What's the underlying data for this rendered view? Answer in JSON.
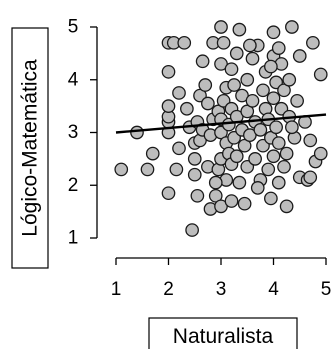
{
  "chart_data": {
    "type": "scatter",
    "xlabel": "Naturalista",
    "ylabel": "Lógico-Matemática",
    "xlim": [
      1,
      5
    ],
    "ylim": [
      1,
      5
    ],
    "x_ticks": [
      1,
      2,
      3,
      4,
      5
    ],
    "y_ticks": [
      1,
      2,
      3,
      4,
      5
    ],
    "grid": false,
    "point_fill": "#bdbdbd",
    "point_stroke": "#1a1a1a",
    "regression_line": {
      "x": [
        1,
        5
      ],
      "y": [
        3.0,
        3.34
      ],
      "color": "#000000"
    },
    "points": [
      {
        "x": 1.1,
        "y": 2.3
      },
      {
        "x": 1.4,
        "y": 3.0
      },
      {
        "x": 1.6,
        "y": 2.3
      },
      {
        "x": 1.7,
        "y": 2.6
      },
      {
        "x": 2.0,
        "y": 1.85
      },
      {
        "x": 2.0,
        "y": 3.0
      },
      {
        "x": 2.0,
        "y": 3.2
      },
      {
        "x": 2.0,
        "y": 3.3
      },
      {
        "x": 2.0,
        "y": 3.5
      },
      {
        "x": 2.0,
        "y": 4.15
      },
      {
        "x": 2.0,
        "y": 4.7
      },
      {
        "x": 2.1,
        "y": 4.7
      },
      {
        "x": 2.15,
        "y": 2.3
      },
      {
        "x": 2.2,
        "y": 2.7
      },
      {
        "x": 2.3,
        "y": 4.7
      },
      {
        "x": 2.4,
        "y": 3.1
      },
      {
        "x": 2.45,
        "y": 1.15
      },
      {
        "x": 2.5,
        "y": 2.2
      },
      {
        "x": 2.5,
        "y": 2.5
      },
      {
        "x": 2.5,
        "y": 2.8
      },
      {
        "x": 2.55,
        "y": 3.2
      },
      {
        "x": 2.6,
        "y": 2.85
      },
      {
        "x": 2.6,
        "y": 3.7
      },
      {
        "x": 2.65,
        "y": 3.05
      },
      {
        "x": 2.7,
        "y": 3.9
      },
      {
        "x": 2.75,
        "y": 2.35
      },
      {
        "x": 2.8,
        "y": 1.55
      },
      {
        "x": 2.8,
        "y": 2.95
      },
      {
        "x": 2.85,
        "y": 3.25
      },
      {
        "x": 2.85,
        "y": 4.7
      },
      {
        "x": 2.9,
        "y": 1.8
      },
      {
        "x": 2.95,
        "y": 2.3
      },
      {
        "x": 2.95,
        "y": 3.4
      },
      {
        "x": 3.0,
        "y": 1.6
      },
      {
        "x": 3.0,
        "y": 2.5
      },
      {
        "x": 3.0,
        "y": 3.0
      },
      {
        "x": 3.0,
        "y": 3.25
      },
      {
        "x": 3.0,
        "y": 4.3
      },
      {
        "x": 3.0,
        "y": 5.0
      },
      {
        "x": 3.05,
        "y": 3.6
      },
      {
        "x": 3.1,
        "y": 2.1
      },
      {
        "x": 3.1,
        "y": 2.8
      },
      {
        "x": 3.1,
        "y": 3.85
      },
      {
        "x": 3.15,
        "y": 2.6
      },
      {
        "x": 3.15,
        "y": 3.15
      },
      {
        "x": 3.2,
        "y": 1.7
      },
      {
        "x": 3.2,
        "y": 2.4
      },
      {
        "x": 3.2,
        "y": 3.45
      },
      {
        "x": 3.2,
        "y": 4.2
      },
      {
        "x": 3.25,
        "y": 2.9
      },
      {
        "x": 3.3,
        "y": 2.55
      },
      {
        "x": 3.3,
        "y": 3.3
      },
      {
        "x": 3.3,
        "y": 4.5
      },
      {
        "x": 3.35,
        "y": 2.05
      },
      {
        "x": 3.4,
        "y": 3.05
      },
      {
        "x": 3.4,
        "y": 3.7
      },
      {
        "x": 3.45,
        "y": 1.65
      },
      {
        "x": 3.45,
        "y": 2.75
      },
      {
        "x": 3.5,
        "y": 2.35
      },
      {
        "x": 3.5,
        "y": 3.4
      },
      {
        "x": 3.5,
        "y": 4.0
      },
      {
        "x": 3.55,
        "y": 2.95
      },
      {
        "x": 3.6,
        "y": 3.6
      },
      {
        "x": 3.6,
        "y": 4.4
      },
      {
        "x": 3.65,
        "y": 2.5
      },
      {
        "x": 3.65,
        "y": 3.2
      },
      {
        "x": 3.7,
        "y": 4.65
      },
      {
        "x": 3.75,
        "y": 2.1
      },
      {
        "x": 3.75,
        "y": 3.05
      },
      {
        "x": 3.8,
        "y": 2.75
      },
      {
        "x": 3.8,
        "y": 3.8
      },
      {
        "x": 3.85,
        "y": 3.45
      },
      {
        "x": 3.85,
        "y": 4.15
      },
      {
        "x": 3.9,
        "y": 2.3
      },
      {
        "x": 3.9,
        "y": 3.25
      },
      {
        "x": 3.95,
        "y": 1.75
      },
      {
        "x": 3.95,
        "y": 2.9
      },
      {
        "x": 4.0,
        "y": 2.55
      },
      {
        "x": 4.0,
        "y": 3.65
      },
      {
        "x": 4.0,
        "y": 4.45
      },
      {
        "x": 4.0,
        "y": 4.9
      },
      {
        "x": 4.05,
        "y": 3.1
      },
      {
        "x": 4.05,
        "y": 3.95
      },
      {
        "x": 4.1,
        "y": 2.05
      },
      {
        "x": 4.1,
        "y": 2.8
      },
      {
        "x": 4.15,
        "y": 3.45
      },
      {
        "x": 4.15,
        "y": 4.3
      },
      {
        "x": 4.2,
        "y": 2.35
      },
      {
        "x": 4.2,
        "y": 3.8
      },
      {
        "x": 4.25,
        "y": 1.6
      },
      {
        "x": 4.25,
        "y": 2.6
      },
      {
        "x": 4.3,
        "y": 3.3
      },
      {
        "x": 4.3,
        "y": 4.0
      },
      {
        "x": 4.35,
        "y": 5.0
      },
      {
        "x": 4.4,
        "y": 2.9
      },
      {
        "x": 4.45,
        "y": 3.6
      },
      {
        "x": 4.5,
        "y": 2.15
      },
      {
        "x": 4.5,
        "y": 4.45
      },
      {
        "x": 4.6,
        "y": 3.2
      },
      {
        "x": 4.65,
        "y": 2.1
      },
      {
        "x": 4.7,
        "y": 2.15
      },
      {
        "x": 4.7,
        "y": 2.85
      },
      {
        "x": 4.75,
        "y": 4.7
      },
      {
        "x": 4.8,
        "y": 2.45
      },
      {
        "x": 4.9,
        "y": 2.6
      },
      {
        "x": 4.9,
        "y": 4.1
      },
      {
        "x": 3.05,
        "y": 4.7
      },
      {
        "x": 3.35,
        "y": 4.95
      },
      {
        "x": 2.65,
        "y": 4.35
      },
      {
        "x": 3.55,
        "y": 4.65
      },
      {
        "x": 2.35,
        "y": 3.45
      },
      {
        "x": 2.9,
        "y": 2.05
      },
      {
        "x": 3.7,
        "y": 1.95
      },
      {
        "x": 4.1,
        "y": 4.6
      },
      {
        "x": 2.55,
        "y": 1.8
      },
      {
        "x": 3.25,
        "y": 3.9
      },
      {
        "x": 4.35,
        "y": 3.1
      },
      {
        "x": 2.75,
        "y": 3.55
      },
      {
        "x": 3.95,
        "y": 4.25
      },
      {
        "x": 2.2,
        "y": 3.75
      }
    ]
  }
}
